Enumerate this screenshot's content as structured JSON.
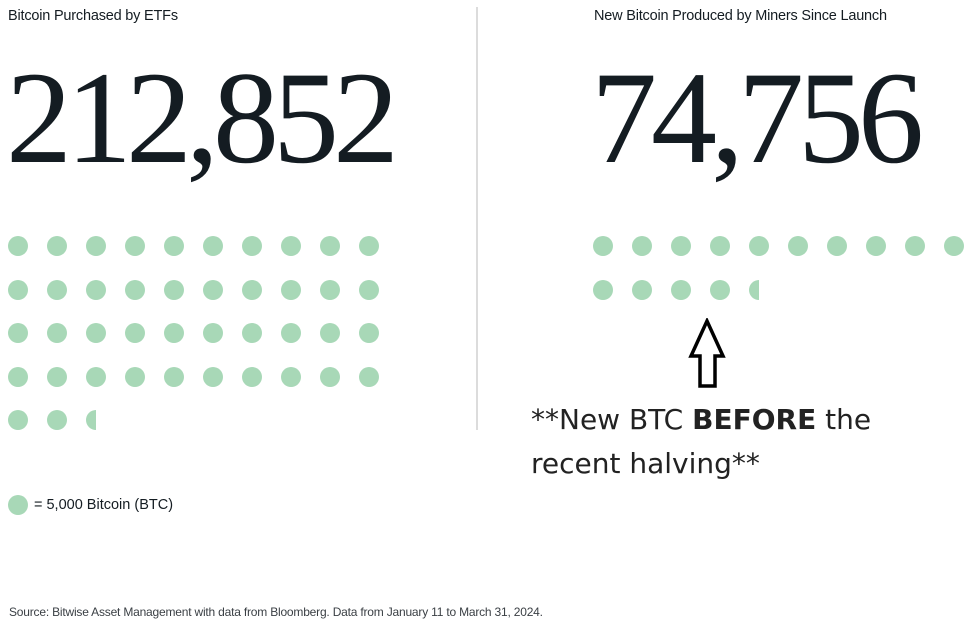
{
  "chart_data": {
    "type": "pictogram",
    "unit_label": "= 5,000 Bitcoin (BTC)",
    "unit_value": 5000,
    "panels": [
      {
        "title": "Bitcoin Purchased by ETFs",
        "value": 212852,
        "value_label": "212,852",
        "dots_full": 42,
        "dots_partial": 0.5,
        "columns": 10
      },
      {
        "title": "New Bitcoin Produced by Miners Since Launch",
        "value": 74756,
        "value_label": "74,756",
        "dots_full": 14,
        "dots_partial": 0.5,
        "columns": 10
      }
    ],
    "annotation": "**New BTC BEFORE the recent halving**",
    "source": "Source: Bitwise Asset Management with data from Bloomberg. Data from January 11 to March 31, 2024."
  },
  "left": {
    "title": "Bitcoin Purchased by ETFs",
    "number": "212,852"
  },
  "right": {
    "title": "New Bitcoin Produced by Miners Since Launch",
    "number": "74,756"
  },
  "annotation": {
    "prefix": "**New BTC ",
    "bold": "BEFORE",
    "suffix_line1": " the",
    "line2": "recent halving**"
  },
  "legend": {
    "label": "= 5,000 Bitcoin (BTC)"
  },
  "source": "Source: Bitwise Asset Management with data from Bloomberg. Data from January 11 to March 31, 2024.",
  "colors": {
    "dot": "#a8d8b7",
    "text": "#141c22",
    "divider": "#dcdcdc"
  }
}
